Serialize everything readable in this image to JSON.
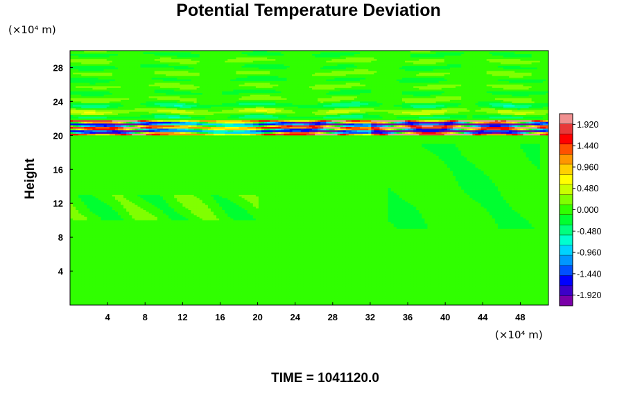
{
  "chart_data": {
    "type": "heatmap",
    "title": "Potential Temperature Deviation",
    "xlabel": "",
    "ylabel": "Height",
    "x_unit": "(×10⁴ m)",
    "y_unit": "(×10⁴ m)",
    "xlim": [
      0,
      51
    ],
    "ylim": [
      0,
      30
    ],
    "x_ticks": [
      4,
      8,
      12,
      16,
      20,
      24,
      28,
      32,
      36,
      40,
      44,
      48
    ],
    "y_ticks": [
      4,
      8,
      12,
      16,
      20,
      24,
      28
    ],
    "colorbar": {
      "range": [
        -2.16,
        2.16
      ],
      "ticks": [
        "1.920",
        "1.440",
        "0.960",
        "0.480",
        "0.000",
        "-0.480",
        "-0.960",
        "-1.440",
        "-1.920"
      ],
      "tick_values": [
        1.92,
        1.44,
        0.96,
        0.48,
        0.0,
        -0.48,
        -0.96,
        -1.44,
        -1.92
      ],
      "colors": [
        "#7a00a8",
        "#3d00c8",
        "#0000ff",
        "#0050ff",
        "#0096ff",
        "#00d2ff",
        "#00ffd0",
        "#00ff80",
        "#00ff30",
        "#30ff00",
        "#80ff00",
        "#c8ff00",
        "#ffff00",
        "#ffd000",
        "#ff9600",
        "#ff5000",
        "#ff0000",
        "#e83838",
        "#f09090"
      ]
    },
    "field_features": [
      {
        "feature": "background",
        "value": 0.0
      },
      {
        "feature": "strong oscillating layer",
        "y_range": [
          20,
          21.5
        ],
        "min": -1.92,
        "max": 1.92
      },
      {
        "feature": "weak wave band",
        "y_range": [
          22,
          24
        ],
        "min": -0.48,
        "max": 0.96
      },
      {
        "feature": "upper layer waves",
        "y_range": [
          24,
          30
        ],
        "min": -0.24,
        "max": 0.48
      }
    ]
  },
  "footer": {
    "time_label": "TIME = 1041120.0"
  }
}
